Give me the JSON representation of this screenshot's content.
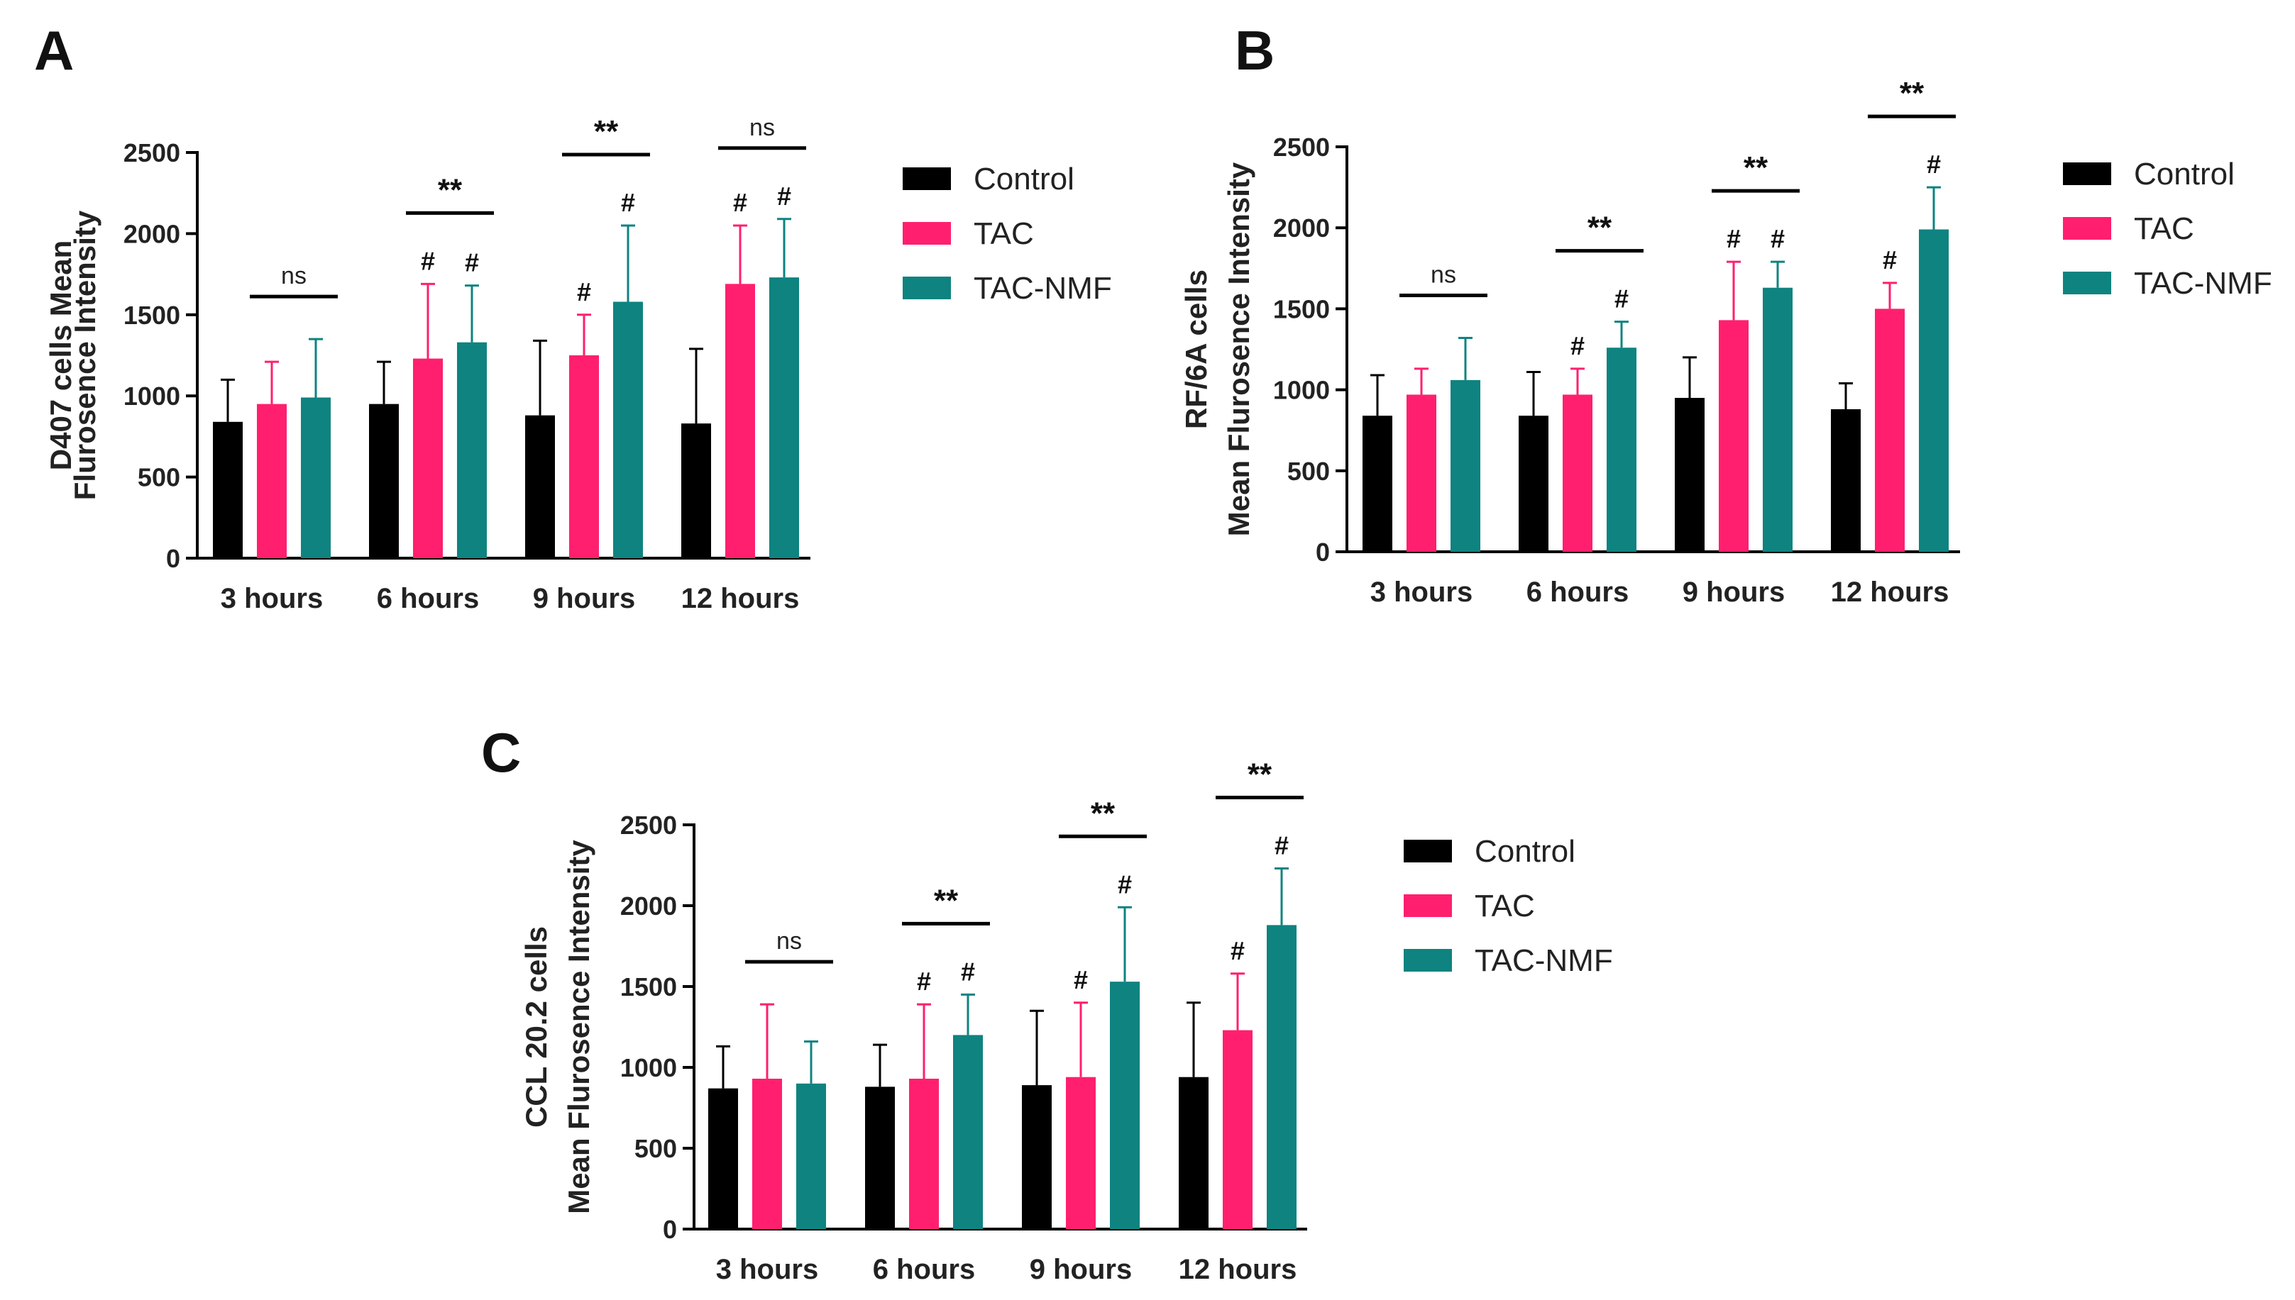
{
  "chart_data": [
    {
      "type": "bar",
      "panel": "A",
      "categories": [
        "3 hours",
        "6 hours",
        "9 hours",
        "12 hours"
      ],
      "ylabel_lines": [
        "D407 cells Mean",
        "Flurosence  Intensity"
      ],
      "ylim": [
        0,
        2500
      ],
      "yticks": [
        0,
        500,
        1000,
        1500,
        2000,
        2500
      ],
      "series": [
        {
          "name": "Control",
          "color": "#000000",
          "values": [
            840,
            950,
            880,
            830
          ],
          "errors": [
            260,
            260,
            460,
            460
          ]
        },
        {
          "name": "TAC",
          "color": "#ff1f6e",
          "values": [
            950,
            1230,
            1250,
            1690
          ],
          "errors": [
            260,
            460,
            250,
            360
          ]
        },
        {
          "name": "TAC-NMF",
          "color": "#0e8380",
          "values": [
            990,
            1330,
            1580,
            1730
          ],
          "errors": [
            360,
            350,
            470,
            360
          ]
        }
      ],
      "significance": [
        "ns",
        "**",
        "**",
        "ns"
      ],
      "hash_marks": [
        [
          false,
          false,
          false
        ],
        [
          false,
          true,
          true
        ],
        [
          false,
          true,
          true
        ],
        [
          false,
          true,
          true
        ]
      ]
    },
    {
      "type": "bar",
      "panel": "B",
      "categories": [
        "3 hours",
        "6 hours",
        "9 hours",
        "12 hours"
      ],
      "ylabel_lines": [
        "RF/6A cells",
        "Mean Flurosence  Intensity"
      ],
      "ylim": [
        0,
        2500
      ],
      "yticks": [
        0,
        500,
        1000,
        1500,
        2000,
        2500
      ],
      "series": [
        {
          "name": "Control",
          "color": "#000000",
          "values": [
            840,
            840,
            950,
            880
          ],
          "errors": [
            250,
            270,
            250,
            160
          ]
        },
        {
          "name": "TAC",
          "color": "#ff1f6e",
          "values": [
            970,
            970,
            1430,
            1500
          ],
          "errors": [
            160,
            160,
            360,
            160
          ]
        },
        {
          "name": "TAC-NMF",
          "color": "#0e8380",
          "values": [
            1060,
            1260,
            1630,
            1990
          ],
          "errors": [
            260,
            160,
            160,
            260
          ]
        }
      ],
      "significance": [
        "ns",
        "**",
        "**",
        "**"
      ],
      "hash_marks": [
        [
          false,
          false,
          false
        ],
        [
          false,
          true,
          true
        ],
        [
          false,
          true,
          true
        ],
        [
          false,
          true,
          true
        ]
      ]
    },
    {
      "type": "bar",
      "panel": "C",
      "categories": [
        "3 hours",
        "6 hours",
        "9 hours",
        "12 hours"
      ],
      "ylabel_lines": [
        "CCL 20.2 cells",
        "Mean Flurosence  Intensity"
      ],
      "ylim": [
        0,
        2500
      ],
      "yticks": [
        0,
        500,
        1000,
        1500,
        2000,
        2500
      ],
      "series": [
        {
          "name": "Control",
          "color": "#000000",
          "values": [
            870,
            880,
            890,
            940
          ],
          "errors": [
            260,
            260,
            460,
            460
          ]
        },
        {
          "name": "TAC",
          "color": "#ff1f6e",
          "values": [
            930,
            930,
            940,
            1230
          ],
          "errors": [
            460,
            460,
            460,
            350
          ]
        },
        {
          "name": "TAC-NMF",
          "color": "#0e8380",
          "values": [
            900,
            1200,
            1530,
            1880
          ],
          "errors": [
            260,
            250,
            460,
            350
          ]
        }
      ],
      "significance": [
        "ns",
        "**",
        "**",
        "**"
      ],
      "hash_marks": [
        [
          false,
          false,
          false
        ],
        [
          false,
          true,
          true
        ],
        [
          false,
          true,
          true
        ],
        [
          false,
          true,
          true
        ]
      ]
    }
  ],
  "legend": [
    {
      "label": "Control",
      "color": "#000000"
    },
    {
      "label": "TAC",
      "color": "#ff1f6e"
    },
    {
      "label": "TAC-NMF",
      "color": "#0e8380"
    }
  ],
  "hash_symbol": "#"
}
